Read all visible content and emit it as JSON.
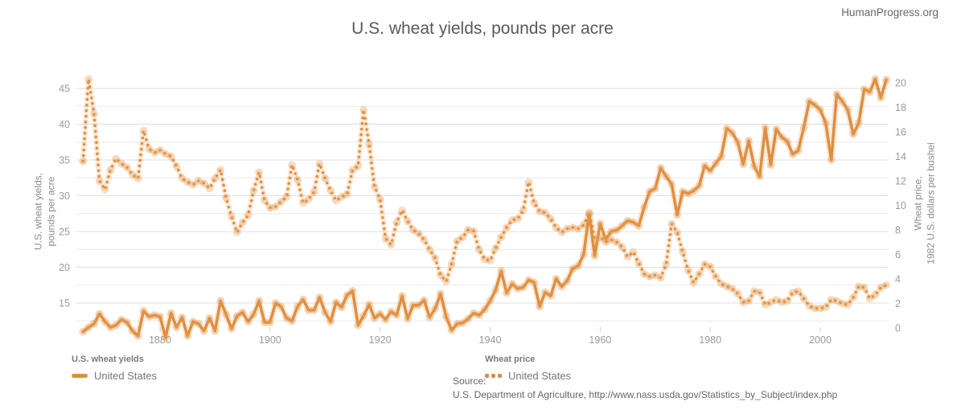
{
  "page": {
    "brand": "HumanProgress.org",
    "title": "U.S. wheat yields, pounds per acre",
    "source_label": "Source:",
    "source_text": "U.S. Department of Agriculture, http://www.nass.usda.gov/Statistics_by_Subject/index.php"
  },
  "legend": {
    "yields_heading": "U.S. wheat yields",
    "yields_item": "United States",
    "price_heading": "Wheat price",
    "price_item": "United States"
  },
  "colors": {
    "series": "#df8e3e",
    "halo": "#e59a50",
    "grid_major": "#dfdfdf",
    "grid_minor": "#eaeaea",
    "tick_text": "#9a9a9a",
    "tick_mark": "#cfcfcf"
  },
  "chart_data": {
    "type": "line",
    "title": "U.S. wheat yields, pounds per acre",
    "x_axis": {
      "ticks": [
        1880,
        1900,
        1920,
        1940,
        1960,
        1980,
        2000
      ]
    },
    "y_left": {
      "title_line1": "U.S. wheat yields,",
      "title_line2": "pounds per acre",
      "ticks": [
        15,
        20,
        25,
        30,
        35,
        40,
        45
      ],
      "gridline_step": 2.5,
      "grid_min": 12.5,
      "grid_max": 45
    },
    "y_right": {
      "title_line1": "Wheat price,",
      "title_line2": "1982 U.S. dollars per bushel",
      "ticks": [
        0,
        2,
        4,
        6,
        8,
        10,
        12,
        14,
        16,
        18,
        20
      ]
    },
    "years": [
      1866,
      1867,
      1868,
      1869,
      1870,
      1871,
      1872,
      1873,
      1874,
      1875,
      1876,
      1877,
      1878,
      1879,
      1880,
      1881,
      1882,
      1883,
      1884,
      1885,
      1886,
      1887,
      1888,
      1889,
      1890,
      1891,
      1892,
      1893,
      1894,
      1895,
      1896,
      1897,
      1898,
      1899,
      1900,
      1901,
      1902,
      1903,
      1904,
      1905,
      1906,
      1907,
      1908,
      1909,
      1910,
      1911,
      1912,
      1913,
      1914,
      1915,
      1916,
      1917,
      1918,
      1919,
      1920,
      1921,
      1922,
      1923,
      1924,
      1925,
      1926,
      1927,
      1928,
      1929,
      1930,
      1931,
      1932,
      1933,
      1934,
      1935,
      1936,
      1937,
      1938,
      1939,
      1940,
      1941,
      1942,
      1943,
      1944,
      1945,
      1946,
      1947,
      1948,
      1949,
      1950,
      1951,
      1952,
      1953,
      1954,
      1955,
      1956,
      1957,
      1958,
      1959,
      1960,
      1961,
      1962,
      1963,
      1964,
      1965,
      1966,
      1967,
      1968,
      1969,
      1970,
      1971,
      1972,
      1973,
      1974,
      1975,
      1976,
      1977,
      1978,
      1979,
      1980,
      1981,
      1982,
      1983,
      1984,
      1985,
      1986,
      1987,
      1988,
      1989,
      1990,
      1991,
      1992,
      1993,
      1994,
      1995,
      1996,
      1997,
      1998,
      1999,
      2000,
      2001,
      2002,
      2003,
      2004,
      2005,
      2006,
      2007,
      2008,
      2009,
      2010,
      2011,
      2012
    ],
    "series": [
      {
        "name": "United States",
        "group": "U.S. wheat yields",
        "axis": "left",
        "style": "solid",
        "values": [
          11.0,
          11.6,
          12.1,
          13.5,
          12.4,
          11.6,
          11.9,
          12.7,
          12.3,
          11.1,
          10.4,
          13.9,
          13.1,
          13.3,
          13.1,
          10.2,
          13.6,
          11.6,
          13.0,
          10.4,
          12.4,
          12.1,
          11.1,
          12.9,
          11.1,
          15.3,
          13.4,
          11.4,
          13.2,
          13.7,
          12.4,
          13.4,
          15.3,
          12.3,
          12.3,
          15.0,
          14.5,
          12.9,
          12.5,
          14.5,
          15.5,
          14.0,
          14.0,
          15.8,
          13.7,
          12.4,
          15.1,
          14.4,
          16.1,
          16.7,
          11.9,
          13.2,
          14.8,
          12.9,
          13.5,
          12.7,
          13.8,
          13.3,
          16.0,
          12.8,
          14.7,
          14.7,
          15.4,
          13.0,
          14.2,
          16.3,
          13.1,
          11.2,
          12.1,
          12.2,
          12.8,
          13.6,
          13.3,
          14.1,
          15.3,
          16.8,
          19.5,
          16.4,
          17.7,
          17.0,
          17.2,
          18.2,
          17.9,
          14.5,
          16.5,
          16.0,
          18.4,
          17.3,
          18.1,
          19.8,
          20.2,
          21.8,
          27.5,
          21.6,
          26.1,
          23.9,
          25.0,
          25.2,
          25.8,
          26.5,
          26.3,
          25.8,
          28.4,
          30.6,
          31.0,
          33.9,
          32.7,
          31.6,
          27.3,
          30.6,
          30.3,
          30.7,
          31.4,
          34.2,
          33.5,
          34.5,
          35.5,
          39.4,
          38.8,
          37.5,
          34.4,
          37.7,
          34.1,
          32.7,
          39.5,
          34.3,
          39.3,
          38.2,
          37.6,
          35.8,
          36.3,
          39.5,
          43.2,
          42.7,
          42.0,
          40.2,
          35.0,
          44.2,
          43.2,
          42.0,
          38.6,
          40.2,
          44.9,
          44.5,
          46.3,
          43.7,
          46.2
        ]
      },
      {
        "name": "United States",
        "group": "Wheat price",
        "axis": "right",
        "style": "dotted",
        "values": [
          13.6,
          20.3,
          17.5,
          12.0,
          11.3,
          12.9,
          13.8,
          13.4,
          13.1,
          12.5,
          12.2,
          16.1,
          14.6,
          14.3,
          14.5,
          14.2,
          14.0,
          13.2,
          12.2,
          11.9,
          11.7,
          12.0,
          11.8,
          11.4,
          12.2,
          12.9,
          10.6,
          9.1,
          7.8,
          8.6,
          9.2,
          11.2,
          12.7,
          10.4,
          9.8,
          9.9,
          10.3,
          10.7,
          13.3,
          12.1,
          10.2,
          10.5,
          11.1,
          13.4,
          12.2,
          11.2,
          10.4,
          10.7,
          10.9,
          12.9,
          13.2,
          17.8,
          15.0,
          11.5,
          10.5,
          7.3,
          6.8,
          8.6,
          9.6,
          8.7,
          8.0,
          7.7,
          7.2,
          6.4,
          5.7,
          4.3,
          3.8,
          5.2,
          7.1,
          7.4,
          8.0,
          7.9,
          6.4,
          5.6,
          5.5,
          6.5,
          7.4,
          8.2,
          8.8,
          8.9,
          9.6,
          11.9,
          10.2,
          9.5,
          9.4,
          8.9,
          8.2,
          7.8,
          8.1,
          8.2,
          8.1,
          8.4,
          9.4,
          7.2,
          7.4,
          7.0,
          7.2,
          7.0,
          6.6,
          5.8,
          6.2,
          5.3,
          4.4,
          4.2,
          4.3,
          4.1,
          5.2,
          8.5,
          7.8,
          6.2,
          4.7,
          3.7,
          4.4,
          5.2,
          5.0,
          4.2,
          3.6,
          3.4,
          3.2,
          2.8,
          2.1,
          2.2,
          3.0,
          2.9,
          1.9,
          2.1,
          2.3,
          2.1,
          2.2,
          2.9,
          3.0,
          2.4,
          1.8,
          1.6,
          1.6,
          1.7,
          2.3,
          2.2,
          2.0,
          1.9,
          2.5,
          3.4,
          3.3,
          2.4,
          2.7,
          3.3,
          3.5
        ]
      }
    ]
  }
}
